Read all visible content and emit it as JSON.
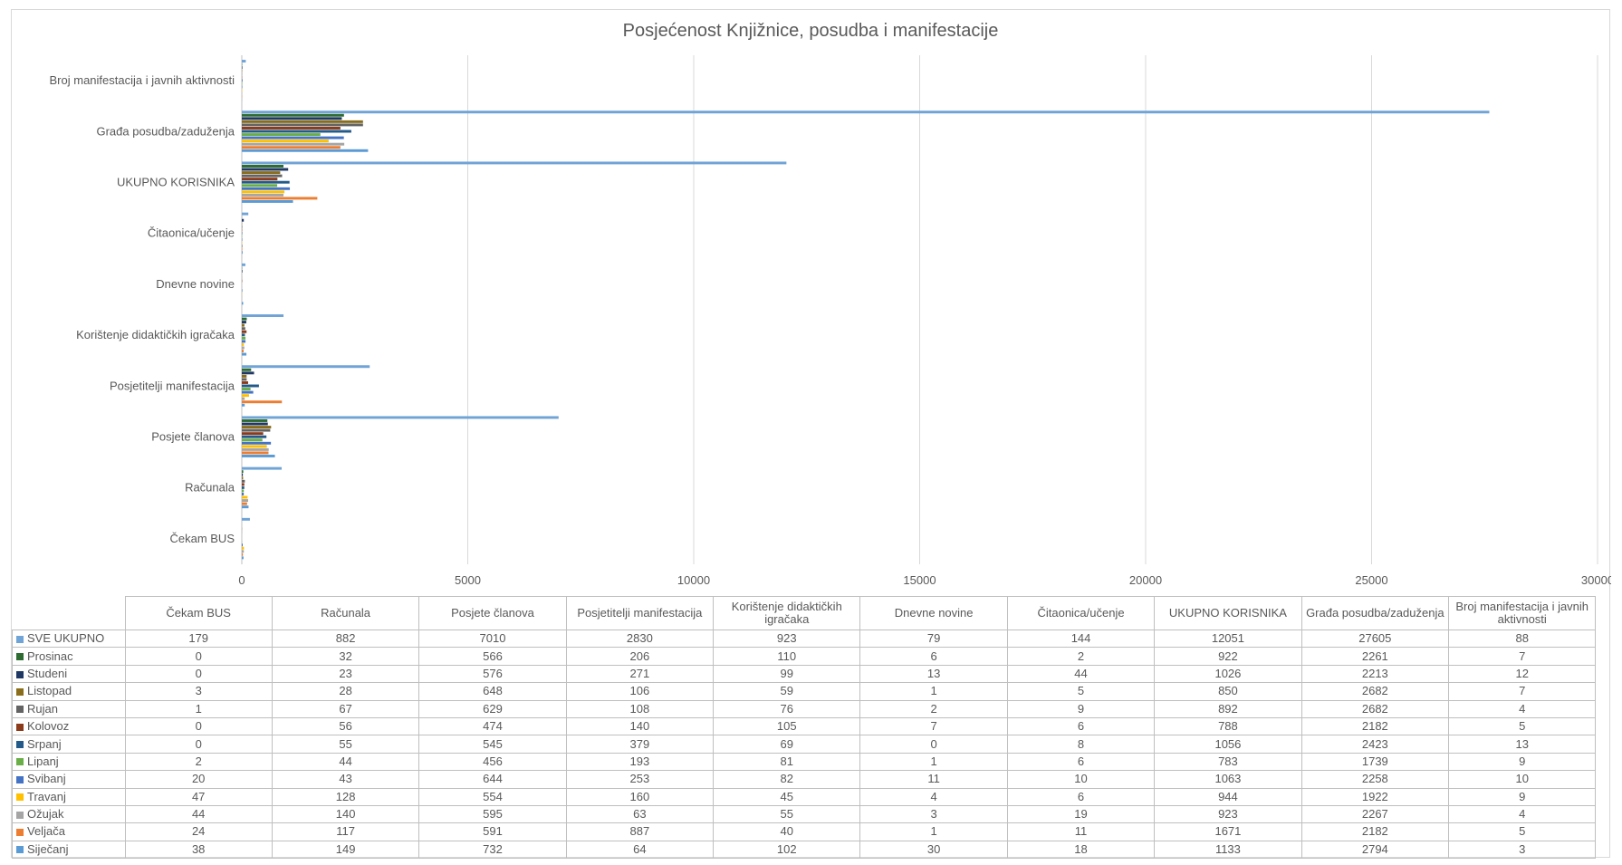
{
  "chart_data": {
    "type": "bar",
    "orientation": "horizontal",
    "title": "Posjećenost Knjižnice, posudba i manifestacije",
    "xlabel": "",
    "ylabel": "",
    "xlim": [
      0,
      30000
    ],
    "x_ticks": [
      "0",
      "5000",
      "10000",
      "15000",
      "20000",
      "25000",
      "30000"
    ],
    "grid": true,
    "legend": "data-table",
    "categories": [
      "Čekam BUS",
      "Računala",
      "Posjete članova",
      "Posjetitelji manifestacija",
      "Korištenje didaktičkih igračaka",
      "Dnevne novine",
      "Čitaonica/učenje",
      "UKUPNO KORISNIKA",
      "Građa posudba/zaduženja",
      "Broj manifestacija i javnih aktivnosti"
    ],
    "series": [
      {
        "name": "SVE UKUPNO",
        "color": "#70a3d6",
        "values": [
          179,
          882,
          7010,
          2830,
          923,
          79,
          144,
          12051,
          27605,
          88
        ]
      },
      {
        "name": "Prosinac",
        "color": "#2e6b30",
        "values": [
          0,
          32,
          566,
          206,
          110,
          6,
          2,
          922,
          2261,
          7
        ]
      },
      {
        "name": "Studeni",
        "color": "#1f3864",
        "values": [
          0,
          23,
          576,
          271,
          99,
          13,
          44,
          1026,
          2213,
          12
        ]
      },
      {
        "name": "Listopad",
        "color": "#8a6d1a",
        "values": [
          3,
          28,
          648,
          106,
          59,
          1,
          5,
          850,
          2682,
          7
        ]
      },
      {
        "name": "Rujan",
        "color": "#636363",
        "values": [
          1,
          67,
          629,
          108,
          76,
          2,
          9,
          892,
          2682,
          4
        ]
      },
      {
        "name": "Kolovoz",
        "color": "#8b3a1a",
        "values": [
          0,
          56,
          474,
          140,
          105,
          7,
          6,
          788,
          2182,
          5
        ]
      },
      {
        "name": "Srpanj",
        "color": "#235a8a",
        "values": [
          0,
          55,
          545,
          379,
          69,
          0,
          8,
          1056,
          2423,
          13
        ]
      },
      {
        "name": "Lipanj",
        "color": "#6aae47",
        "values": [
          2,
          44,
          456,
          193,
          81,
          1,
          6,
          783,
          1739,
          9
        ]
      },
      {
        "name": "Svibanj",
        "color": "#4472c4",
        "values": [
          20,
          43,
          644,
          253,
          82,
          11,
          10,
          1063,
          2258,
          10
        ]
      },
      {
        "name": "Travanj",
        "color": "#ffc000",
        "values": [
          47,
          128,
          554,
          160,
          45,
          4,
          6,
          944,
          1922,
          9
        ]
      },
      {
        "name": "Ožujak",
        "color": "#a5a5a5",
        "values": [
          44,
          140,
          595,
          63,
          55,
          3,
          19,
          923,
          2267,
          4
        ]
      },
      {
        "name": "Veljača",
        "color": "#ed7d31",
        "values": [
          24,
          117,
          591,
          887,
          40,
          1,
          11,
          1671,
          2182,
          5
        ]
      },
      {
        "name": "Siječanj",
        "color": "#5b9bd5",
        "values": [
          38,
          149,
          732,
          64,
          102,
          30,
          18,
          1133,
          2794,
          3
        ]
      }
    ],
    "table_headers": [
      "Čekam BUS",
      "Računala",
      "Posjete članova",
      "Posjetitelji manifestacija",
      "Korištenje didaktičkih igračaka",
      "Dnevne novine",
      "Čitaonica/učenje",
      "UKUPNO KORISNIKA",
      "Građa posudba/zaduženja",
      "Broj manifestacija i javnih aktivnosti"
    ]
  }
}
